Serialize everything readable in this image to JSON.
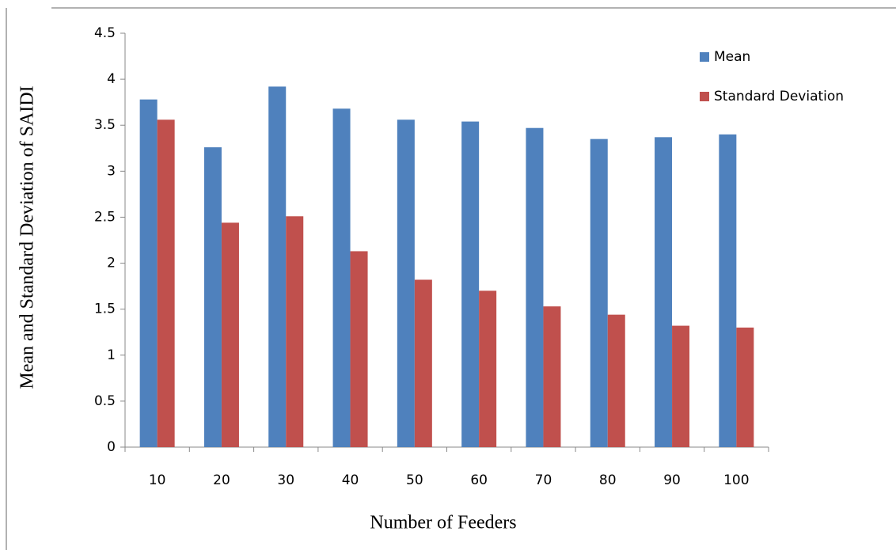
{
  "chart_data": {
    "type": "bar",
    "x_label": "Number of Feeders",
    "y_label": "Mean and Standard Deviation of SAIDI",
    "categories": [
      "10",
      "20",
      "30",
      "40",
      "50",
      "60",
      "70",
      "80",
      "90",
      "100"
    ],
    "series": [
      {
        "name": "Mean",
        "color": "#4f81bd",
        "values": [
          3.78,
          3.26,
          3.92,
          3.68,
          3.56,
          3.54,
          3.47,
          3.35,
          3.37,
          3.4
        ]
      },
      {
        "name": "Standard Deviation",
        "color": "#c0504d",
        "values": [
          3.56,
          2.44,
          2.51,
          2.13,
          1.82,
          1.7,
          1.53,
          1.44,
          1.32,
          1.3
        ]
      }
    ],
    "ylim": [
      0,
      4.5
    ],
    "yticks": [
      0,
      0.5,
      1,
      1.5,
      2,
      2.5,
      3,
      3.5,
      4,
      4.5
    ],
    "grid": false,
    "legend": "upper right"
  }
}
